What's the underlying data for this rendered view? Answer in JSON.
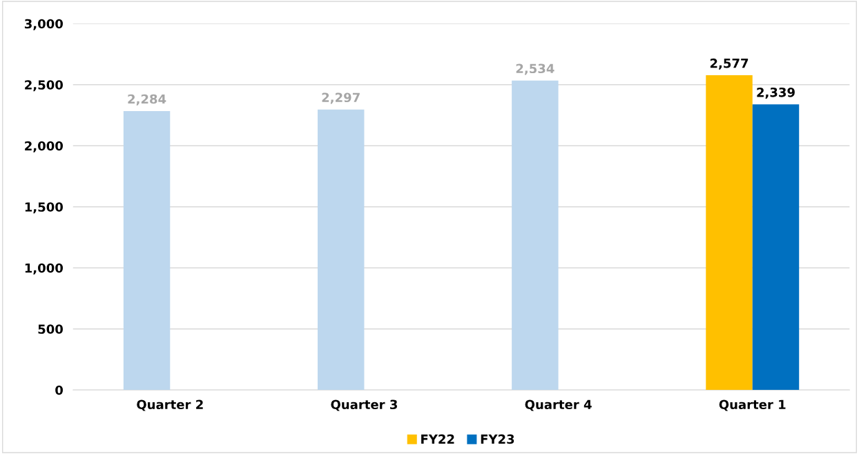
{
  "chart_data": {
    "type": "bar",
    "categories": [
      "Quarter 2",
      "Quarter 3",
      "Quarter 4",
      "Quarter 1"
    ],
    "series": [
      {
        "name": "FY22",
        "color": "#ffc000",
        "colors": [
          "#bdd7ee",
          "#bdd7ee",
          "#bdd7ee",
          "#ffc000"
        ],
        "values": [
          2284,
          2297,
          2534,
          2577
        ],
        "value_labels": [
          "2,284",
          "2,297",
          "2,534",
          "2,577"
        ]
      },
      {
        "name": "FY23",
        "color": "#0070c0",
        "values": [
          null,
          null,
          null,
          2339
        ],
        "value_labels": [
          null,
          null,
          null,
          "2,339"
        ]
      }
    ],
    "ylim": [
      0,
      3000
    ],
    "yticks": [
      {
        "value": 0,
        "label": "0"
      },
      {
        "value": 500,
        "label": "500"
      },
      {
        "value": 1000,
        "label": "1,000"
      },
      {
        "value": 1500,
        "label": "1,500"
      },
      {
        "value": 2000,
        "label": "2,000"
      },
      {
        "value": 2500,
        "label": "2,500"
      },
      {
        "value": 3000,
        "label": "3,000"
      }
    ],
    "grid": "y",
    "legend": "bottom"
  }
}
